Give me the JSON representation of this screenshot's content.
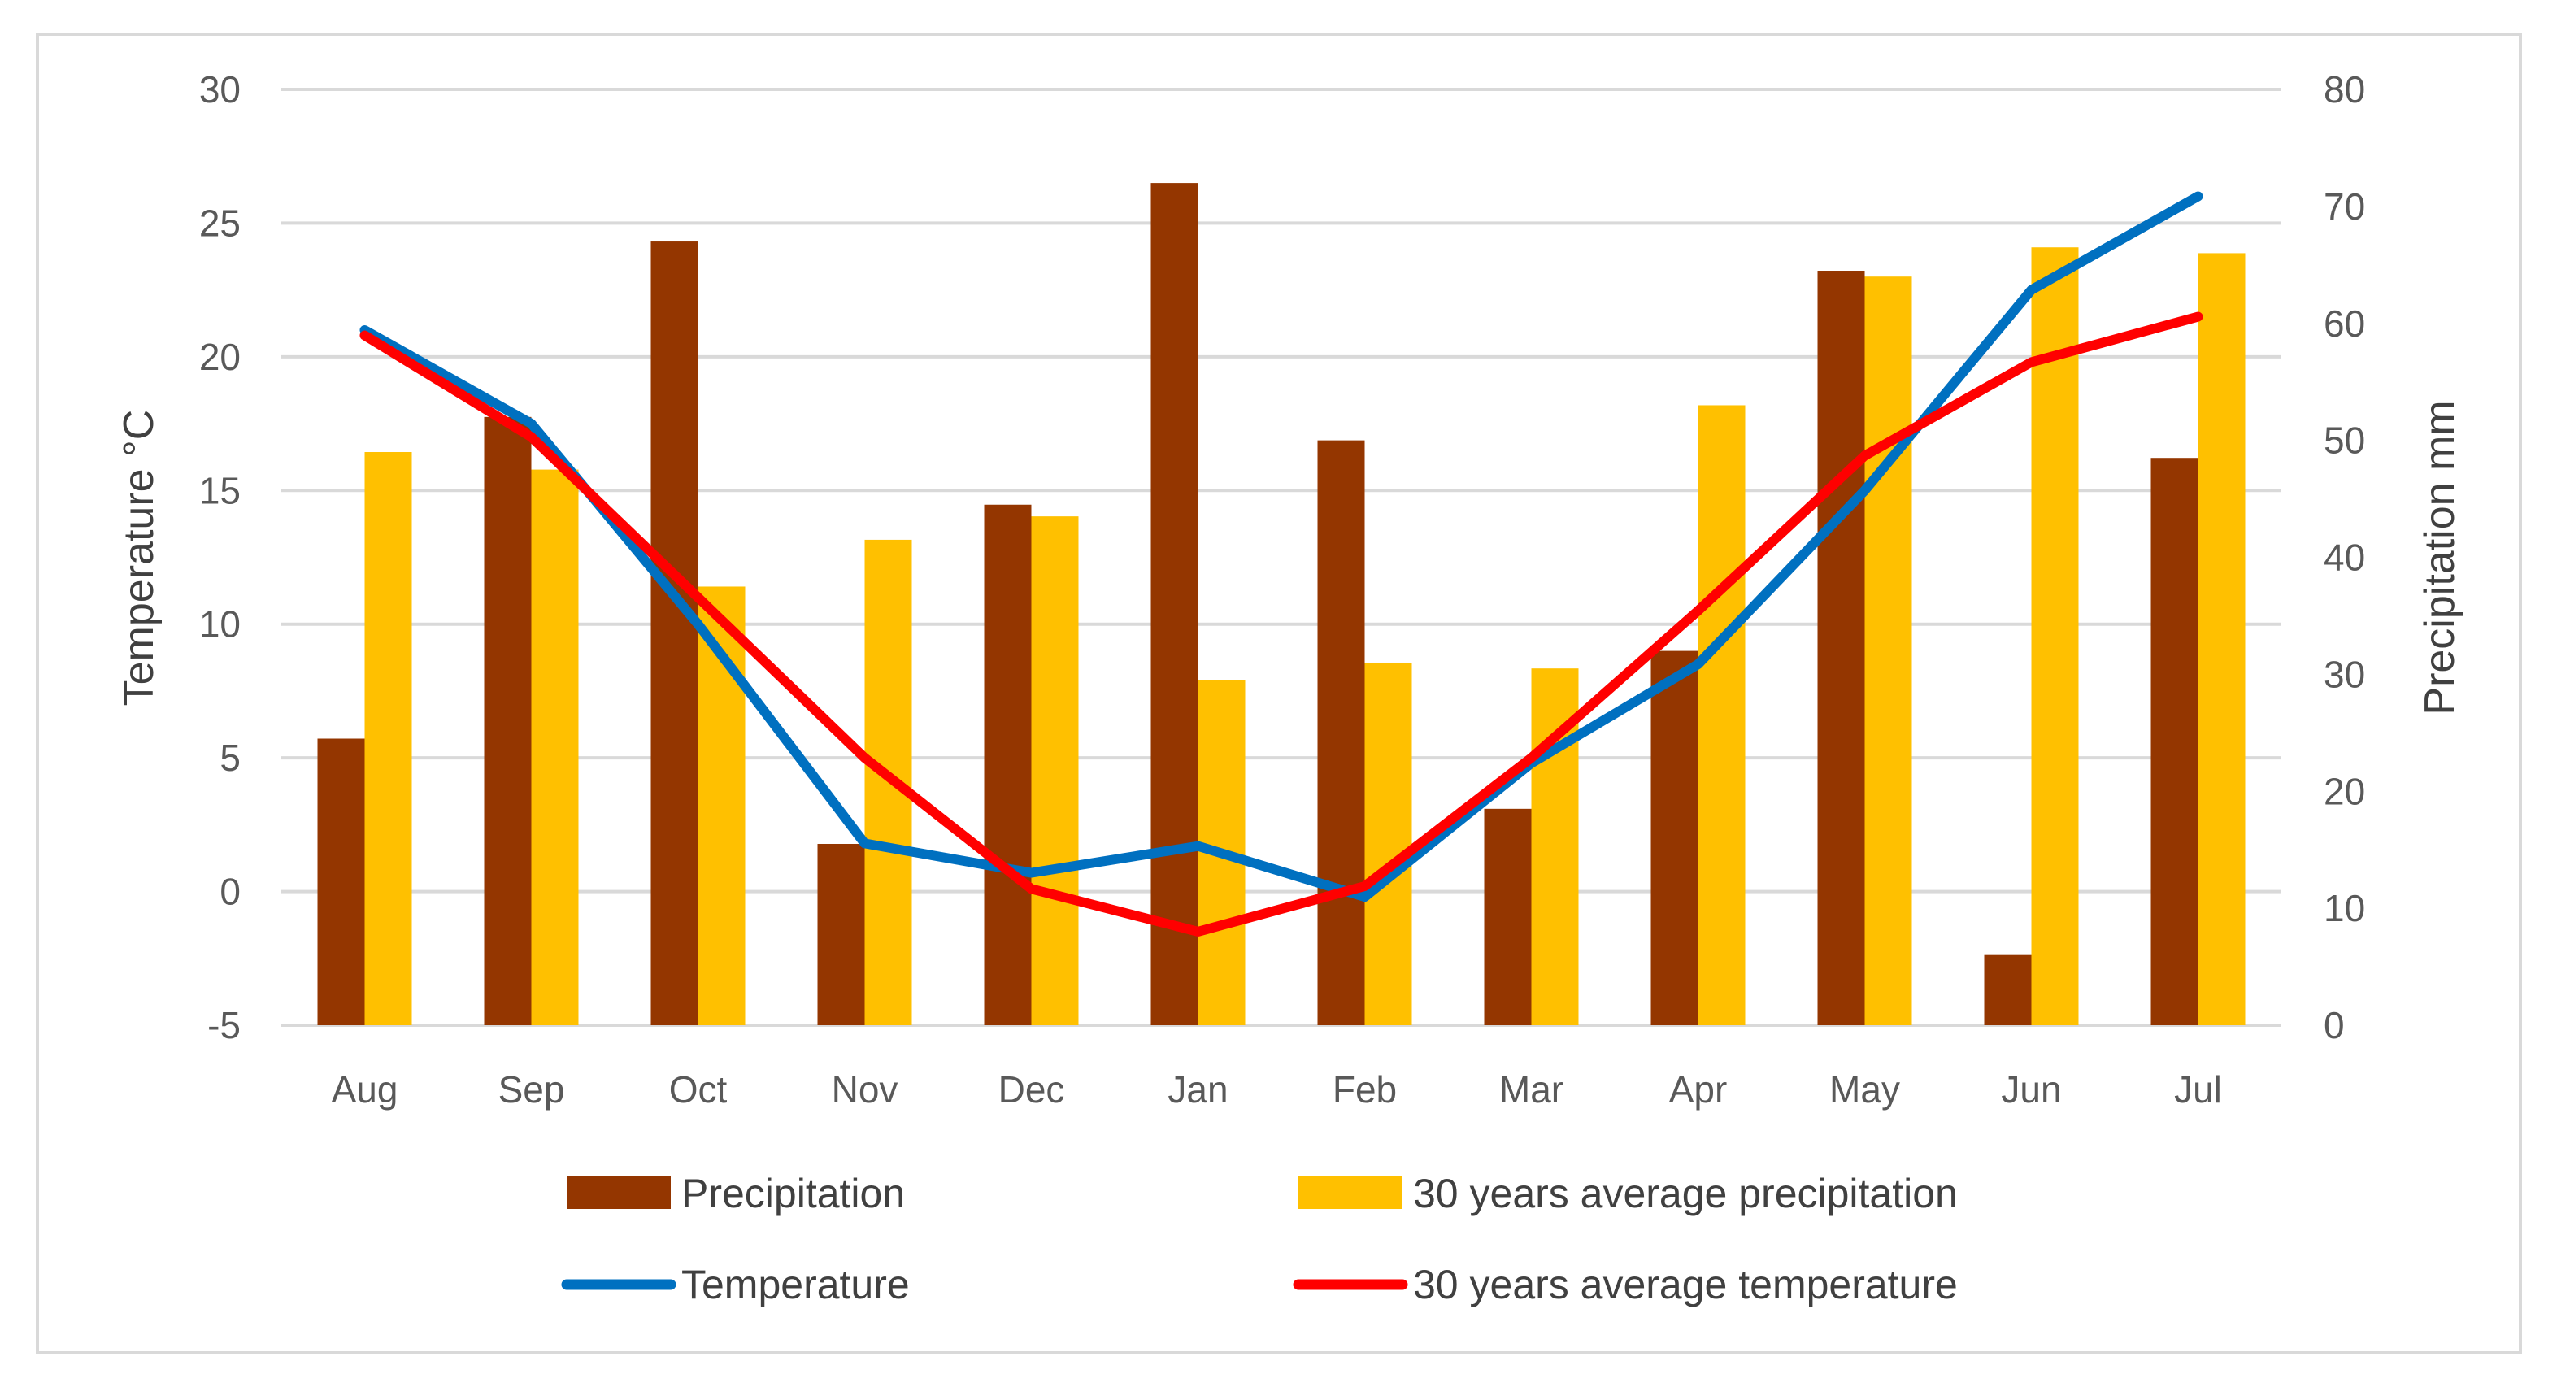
{
  "chart_data": {
    "type": "bar",
    "categories": [
      "Aug",
      "Sep",
      "Oct",
      "Nov",
      "Dec",
      "Jan",
      "Feb",
      "Mar",
      "Apr",
      "May",
      "Jun",
      "Jul"
    ],
    "y_left": {
      "label": "Temperature °C",
      "lim": [
        -5,
        30
      ],
      "ticks": [
        -5,
        0,
        5,
        10,
        15,
        20,
        25,
        30
      ]
    },
    "y_right": {
      "label": "Precipitation mm",
      "lim": [
        0,
        80
      ],
      "ticks": [
        0,
        10,
        20,
        30,
        40,
        50,
        60,
        70,
        80
      ]
    },
    "grid": true,
    "legend_position": "bottom",
    "series": [
      {
        "name": "Precipitation",
        "type": "bar",
        "axis": "right",
        "color": "#943600",
        "values": [
          24.5,
          52,
          67,
          15.5,
          44.5,
          72,
          50,
          18.5,
          32,
          64.5,
          6,
          48.5
        ]
      },
      {
        "name": "30 years average precipitation",
        "type": "bar",
        "axis": "right",
        "color": "#FFC000",
        "values": [
          49,
          47.5,
          37.5,
          41.5,
          43.5,
          29.5,
          31,
          30.5,
          53,
          64,
          66.5,
          66
        ]
      },
      {
        "name": "Temperature",
        "type": "line",
        "axis": "left",
        "color": "#0070C0",
        "values": [
          21,
          17.5,
          10,
          1.8,
          0.7,
          1.7,
          -0.2,
          4.8,
          8.5,
          15,
          22.5,
          26
        ]
      },
      {
        "name": "30 years average temperature",
        "type": "line",
        "axis": "left",
        "color": "#FF0000",
        "values": [
          20.8,
          17,
          11,
          5,
          0.1,
          -1.5,
          0.2,
          5,
          10.5,
          16.3,
          19.8,
          21.5
        ]
      }
    ]
  }
}
